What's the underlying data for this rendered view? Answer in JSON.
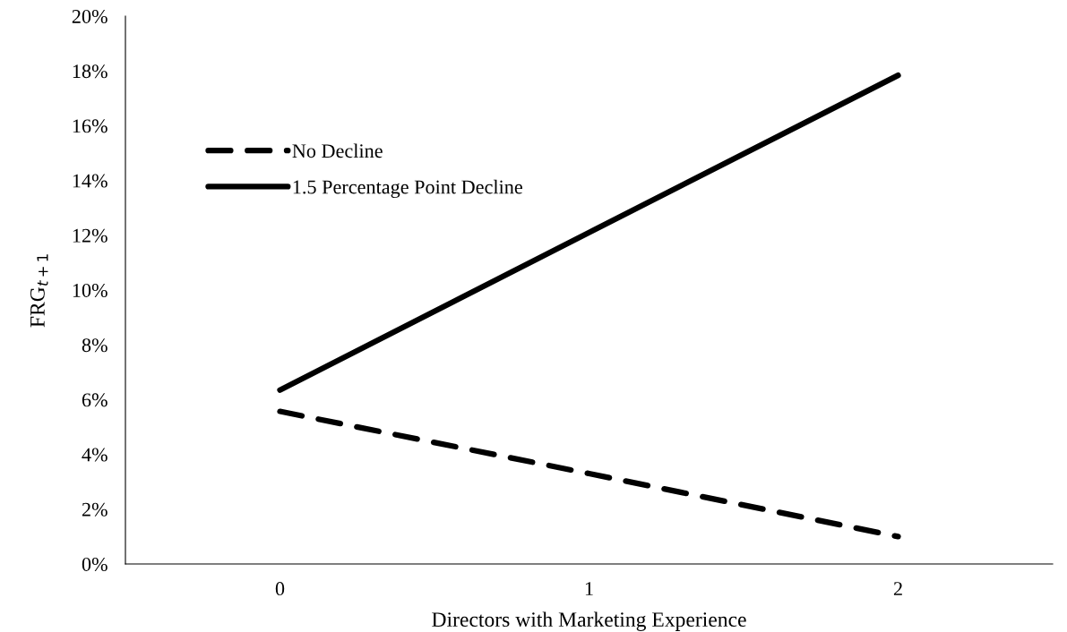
{
  "chart_data": {
    "type": "line",
    "xlabel": "Directors with Marketing Experience",
    "ylabel": "FRG$_{t+1}$",
    "categories": [
      "0",
      "1",
      "2"
    ],
    "series": [
      {
        "name": "No Decline",
        "color": "#000000",
        "line_style": "dashed",
        "values": [
          5.57,
          3.3,
          1.0
        ]
      },
      {
        "name": "1.5 Percentage Point Decline",
        "color": "#000000",
        "line_style": "solid",
        "values": [
          6.35,
          12.1,
          17.84
        ]
      }
    ],
    "ylim": [
      0,
      20
    ],
    "yticks": [
      {
        "value": 0,
        "label": "0%"
      },
      {
        "value": 2,
        "label": "2%"
      },
      {
        "value": 4,
        "label": "4%"
      },
      {
        "value": 6,
        "label": "6%"
      },
      {
        "value": 8,
        "label": "8%"
      },
      {
        "value": 10,
        "label": "10%"
      },
      {
        "value": 12,
        "label": "12%"
      },
      {
        "value": 14,
        "label": "14%"
      },
      {
        "value": 16,
        "label": "16%"
      },
      {
        "value": 18,
        "label": "18%"
      },
      {
        "value": 20,
        "label": "20%"
      }
    ],
    "grid": false,
    "legend": "top left",
    "marker": "none"
  }
}
